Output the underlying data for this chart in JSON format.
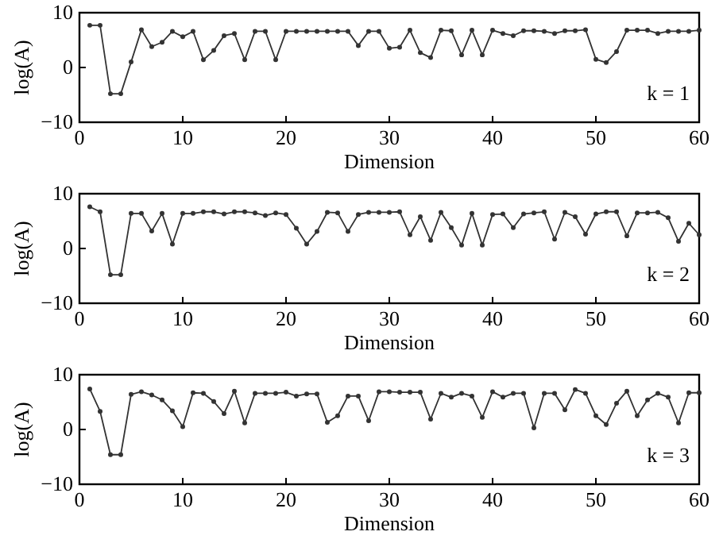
{
  "chart_data": [
    {
      "type": "line",
      "xlabel": "Dimension",
      "ylabel": "log(A)",
      "annotations": [
        "k = 1"
      ],
      "xlim": [
        0,
        60
      ],
      "xticks": [
        0,
        10,
        20,
        30,
        40,
        50,
        60
      ],
      "ylim": [
        -10,
        10
      ],
      "yticks": [
        -10,
        0,
        10
      ],
      "marker": "circle",
      "x": [
        1,
        2,
        3,
        4,
        5,
        6,
        7,
        8,
        9,
        10,
        11,
        12,
        13,
        14,
        15,
        16,
        17,
        18,
        19,
        20,
        21,
        22,
        23,
        24,
        25,
        26,
        27,
        28,
        29,
        30,
        31,
        32,
        33,
        34,
        35,
        36,
        37,
        38,
        39,
        40,
        41,
        42,
        43,
        44,
        45,
        46,
        47,
        48,
        49,
        50,
        51,
        52,
        53,
        54,
        55,
        56,
        57,
        58,
        59,
        60
      ],
      "series": [
        {
          "color": "#333333",
          "values": [
            7.7,
            7.7,
            -4.8,
            -4.8,
            1,
            6.9,
            3.8,
            4.6,
            6.6,
            5.6,
            6.6,
            1.4,
            3.1,
            5.8,
            6.2,
            1.4,
            6.6,
            6.6,
            1.4,
            6.6,
            6.6,
            6.6,
            6.6,
            6.6,
            6.6,
            6.6,
            4,
            6.6,
            6.6,
            3.5,
            3.7,
            6.8,
            2.7,
            1.8,
            6.8,
            6.7,
            2.3,
            6.8,
            2.3,
            6.8,
            6.2,
            5.8,
            6.7,
            6.7,
            6.6,
            6.2,
            6.7,
            6.7,
            6.9,
            1.5,
            0.9,
            2.9,
            6.8,
            6.8,
            6.8,
            6.2,
            6.6,
            6.6,
            6.6,
            6.8
          ]
        }
      ]
    },
    {
      "type": "line",
      "xlabel": "Dimension",
      "ylabel": "log(A)",
      "annotations": [
        "k = 2"
      ],
      "xlim": [
        0,
        60
      ],
      "xticks": [
        0,
        10,
        20,
        30,
        40,
        50,
        60
      ],
      "ylim": [
        -10,
        10
      ],
      "yticks": [
        -10,
        0,
        10
      ],
      "marker": "circle",
      "x": [
        1,
        2,
        3,
        4,
        5,
        6,
        7,
        8,
        9,
        10,
        11,
        12,
        13,
        14,
        15,
        16,
        17,
        18,
        19,
        20,
        21,
        22,
        23,
        24,
        25,
        26,
        27,
        28,
        29,
        30,
        31,
        32,
        33,
        34,
        35,
        36,
        37,
        38,
        39,
        40,
        41,
        42,
        43,
        44,
        45,
        46,
        47,
        48,
        49,
        50,
        51,
        52,
        53,
        54,
        55,
        56,
        57,
        58,
        59,
        60
      ],
      "series": [
        {
          "color": "#333333",
          "values": [
            7.6,
            6.7,
            -4.8,
            -4.8,
            6.4,
            6.4,
            3.2,
            6.4,
            0.8,
            6.4,
            6.4,
            6.7,
            6.7,
            6.3,
            6.7,
            6.7,
            6.5,
            6,
            6.5,
            6.2,
            3.7,
            0.8,
            3.1,
            6.6,
            6.5,
            3.1,
            6.2,
            6.6,
            6.6,
            6.6,
            6.7,
            2.5,
            5.8,
            1.5,
            6.6,
            3.8,
            0.6,
            6.4,
            0.6,
            6.2,
            6.3,
            3.8,
            6.3,
            6.5,
            6.7,
            1.7,
            6.6,
            5.8,
            2.6,
            6.3,
            6.7,
            6.7,
            2.3,
            6.5,
            6.5,
            6.6,
            5.6,
            1.3,
            4.6,
            2.5
          ]
        }
      ]
    },
    {
      "type": "line",
      "xlabel": "Dimension",
      "ylabel": "log(A)",
      "annotations": [
        "k = 3"
      ],
      "xlim": [
        0,
        60
      ],
      "xticks": [
        0,
        10,
        20,
        30,
        40,
        50,
        60
      ],
      "ylim": [
        -10,
        10
      ],
      "yticks": [
        -10,
        0,
        10
      ],
      "marker": "circle",
      "x": [
        1,
        2,
        3,
        4,
        5,
        6,
        7,
        8,
        9,
        10,
        11,
        12,
        13,
        14,
        15,
        16,
        17,
        18,
        19,
        20,
        21,
        22,
        23,
        24,
        25,
        26,
        27,
        28,
        29,
        30,
        31,
        32,
        33,
        34,
        35,
        36,
        37,
        38,
        39,
        40,
        41,
        42,
        43,
        44,
        45,
        46,
        47,
        48,
        49,
        50,
        51,
        52,
        53,
        54,
        55,
        56,
        57,
        58,
        59,
        60
      ],
      "series": [
        {
          "color": "#333333",
          "values": [
            7.4,
            3.3,
            -4.6,
            -4.6,
            6.4,
            6.9,
            6.3,
            5.4,
            3.4,
            0.5,
            6.7,
            6.6,
            5.1,
            2.9,
            7,
            1.2,
            6.6,
            6.6,
            6.6,
            6.8,
            6.1,
            6.5,
            6.5,
            1.3,
            2.5,
            6.1,
            6.1,
            1.6,
            6.9,
            6.9,
            6.8,
            6.8,
            6.8,
            1.9,
            6.6,
            5.9,
            6.6,
            6.1,
            2.2,
            6.9,
            5.9,
            6.6,
            6.6,
            0.3,
            6.6,
            6.6,
            3.6,
            7.3,
            6.6,
            2.5,
            0.9,
            4.8,
            7,
            2.5,
            5.4,
            6.6,
            5.9,
            1.2,
            6.7,
            6.7
          ]
        }
      ]
    }
  ]
}
